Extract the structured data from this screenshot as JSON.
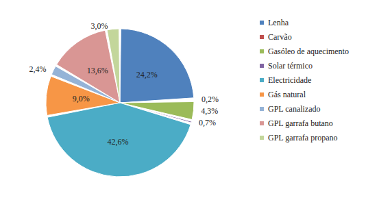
{
  "chart_data": {
    "type": "pie",
    "categories": [
      "Lenha",
      "Carvão",
      "Gasóleo de aquecimento",
      "Solar térmico",
      "Electricidade",
      "Gás natural",
      "GPL canalizado",
      "GPL garrafa butano",
      "GPL garrafa propano"
    ],
    "values": [
      24.2,
      0.2,
      4.3,
      0.7,
      42.6,
      9.0,
      2.4,
      13.6,
      3.0
    ],
    "value_labels": [
      "24,2%",
      "0,2%",
      "4,3%",
      "0,7%",
      "42,6%",
      "9,0%",
      "2,4%",
      "13,6%",
      "3,0%"
    ],
    "colors": [
      "#4f81bd",
      "#c0504d",
      "#9bbb59",
      "#8064a2",
      "#4bacc6",
      "#f79646",
      "#95b3d7",
      "#d99694",
      "#c3d69b"
    ],
    "data_labels": true,
    "legend": "right"
  }
}
